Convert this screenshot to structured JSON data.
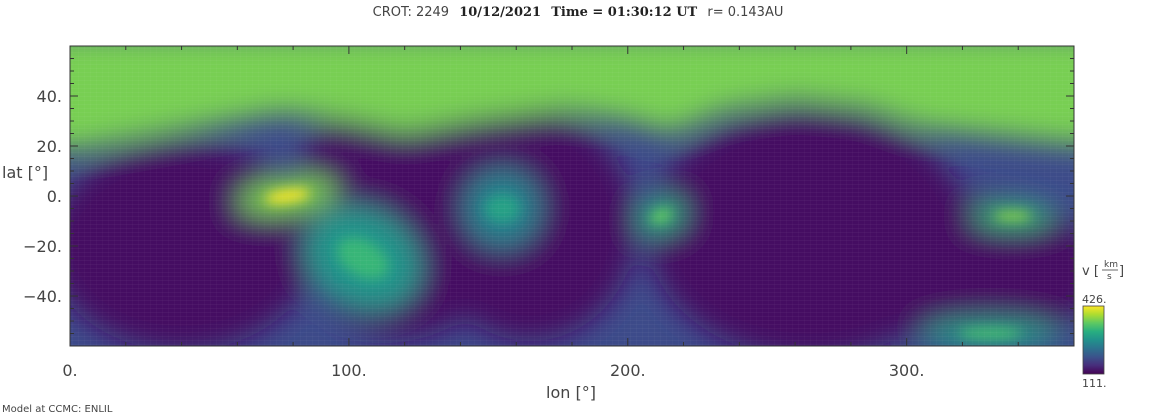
{
  "title": {
    "crot": "CROT: 2249",
    "date": "10/12/2021",
    "time": "Time = 01:30:12 UT",
    "radius": "r= 0.143AU"
  },
  "footer": "Model at CCMC: ENLIL",
  "colorbar": {
    "label_var": "v",
    "label_unit_num": "km",
    "label_unit_den": "s",
    "max_label": "426.",
    "min_label": "111.",
    "colormap": [
      "#440154",
      "#472d7b",
      "#3b528b",
      "#2c728e",
      "#21918c",
      "#28ae80",
      "#5ec962",
      "#addc30",
      "#fde725"
    ]
  },
  "chart_data": {
    "type": "heatmap",
    "title": "CROT: 2249 10/12/2021 Time = 01:30:12 UT r= 0.143AU",
    "xlabel": "lon [°]",
    "ylabel": "lat [°]",
    "xlim": [
      0,
      360
    ],
    "ylim": [
      -60,
      60
    ],
    "xticks": [
      0,
      100,
      200,
      300
    ],
    "xtick_labels": [
      "0.",
      "100.",
      "200.",
      "300."
    ],
    "yticks": [
      40,
      20,
      0,
      -20,
      -40
    ],
    "ytick_labels": [
      "40.",
      "20.",
      "0.",
      "−20.",
      "−40."
    ],
    "value_label": "v [km/s]",
    "vrange": [
      111,
      426
    ],
    "features": [
      {
        "name": "northern fast wind",
        "lon_range": [
          0,
          360
        ],
        "lat_min": 30,
        "v": 360
      },
      {
        "name": "fast stream",
        "lon": 78,
        "lat": 0,
        "v": 426
      },
      {
        "name": "fast stream",
        "lon": 105,
        "lat": -25,
        "v": 320
      },
      {
        "name": "fast stream",
        "lon": 155,
        "lat": -5,
        "v": 290
      },
      {
        "name": "fast stream",
        "lon": 212,
        "lat": -8,
        "v": 350
      },
      {
        "name": "fast stream",
        "lon": 338,
        "lat": -8,
        "v": 370
      },
      {
        "name": "fast stream",
        "lon": 330,
        "lat": -55,
        "v": 330
      }
    ]
  }
}
